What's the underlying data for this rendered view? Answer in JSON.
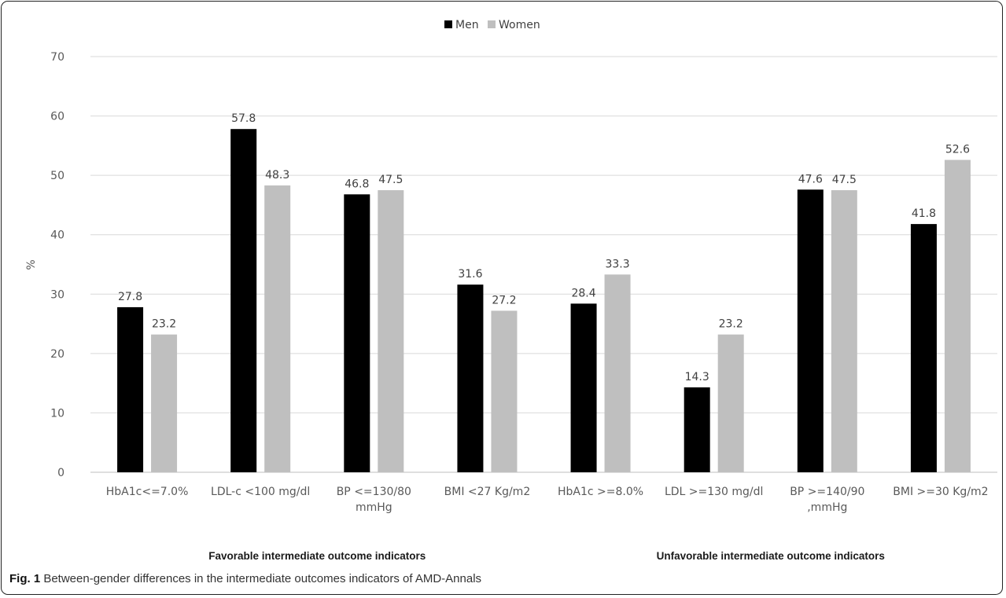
{
  "chart_data": {
    "type": "bar",
    "title": "",
    "xlabel": "",
    "ylabel": "%",
    "ylim": [
      0,
      70
    ],
    "yticks": [
      0,
      10,
      20,
      30,
      40,
      50,
      60,
      70
    ],
    "grid": true,
    "legend_position": "top-center",
    "categories": [
      [
        "HbA1c<=7.0%"
      ],
      [
        "LDL-c <100 mg/dl"
      ],
      [
        "BP <=130/80",
        "mmHg"
      ],
      [
        "BMI <27 Kg/m2"
      ],
      [
        "HbA1c >=8.0%"
      ],
      [
        "LDL >=130 mg/dl"
      ],
      [
        "BP >=140/90",
        ",mmHg"
      ],
      [
        "BMI >=30 Kg/m2"
      ]
    ],
    "series": [
      {
        "name": "Men",
        "color": "#000000",
        "values": [
          27.8,
          57.8,
          46.8,
          31.6,
          28.4,
          14.3,
          47.6,
          41.8
        ]
      },
      {
        "name": "Women",
        "color": "#bfbfbf",
        "values": [
          23.2,
          48.3,
          47.5,
          27.2,
          33.3,
          23.2,
          47.5,
          52.6
        ]
      }
    ],
    "group_labels": [
      {
        "text": "Favorable intermediate outcome indicators",
        "categories": [
          0,
          3
        ]
      },
      {
        "text": "Unfavorable intermediate outcome indicators",
        "categories": [
          4,
          7
        ]
      }
    ]
  },
  "caption": {
    "label": "Fig. 1",
    "text": " Between-gender differences in the intermediate outcomes indicators of AMD-Annals"
  }
}
